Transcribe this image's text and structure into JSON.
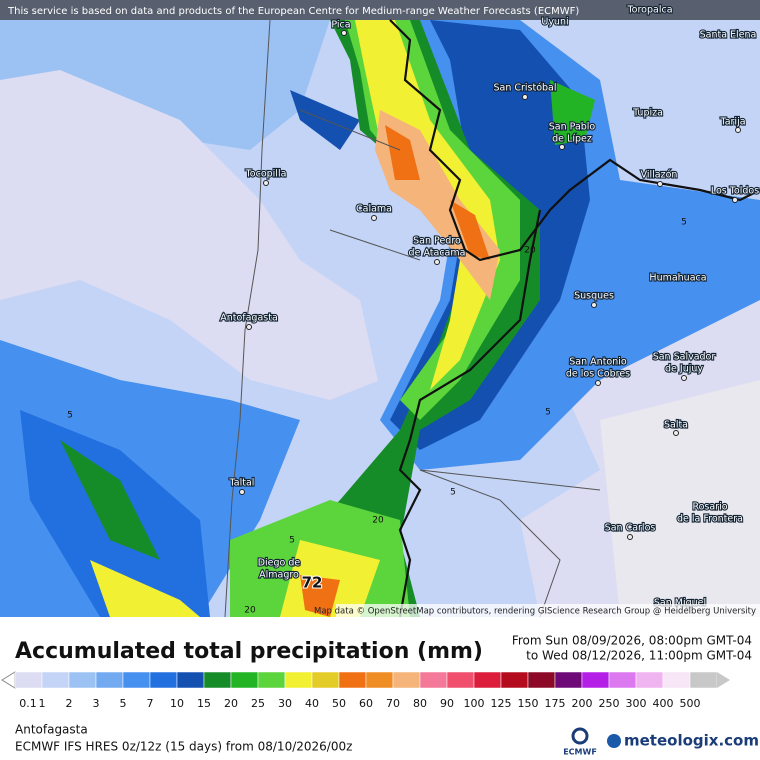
{
  "header": {
    "notice": "This service is based on data and products of the European Centre for Medium-range Weather Forecasts (ECMWF)"
  },
  "map": {
    "cities": [
      {
        "lines": [
          "Toropalca"
        ]
      },
      {
        "lines": [
          "Pica"
        ]
      },
      {
        "lines": [
          "Uyuni"
        ]
      },
      {
        "lines": [
          "Santa Elena"
        ]
      },
      {
        "lines": [
          "San Cristóbal"
        ]
      },
      {
        "lines": [
          "San Pablo",
          "de Lípez"
        ]
      },
      {
        "lines": [
          "Tupiza"
        ]
      },
      {
        "lines": [
          "Tarija"
        ]
      },
      {
        "lines": [
          "Tocopilla"
        ]
      },
      {
        "lines": [
          "Villazón"
        ]
      },
      {
        "lines": [
          "Los Toldos"
        ]
      },
      {
        "lines": [
          "Calama"
        ]
      },
      {
        "lines": [
          "San Pedro",
          "de Atacama"
        ]
      },
      {
        "lines": [
          "Humahuaca"
        ]
      },
      {
        "lines": [
          "Antofagasta"
        ]
      },
      {
        "lines": [
          "Susques"
        ]
      },
      {
        "lines": [
          "San Antonio",
          "de los Cobres"
        ]
      },
      {
        "lines": [
          "San Salvador",
          "de Jujuy"
        ]
      },
      {
        "lines": [
          "Salta"
        ]
      },
      {
        "lines": [
          "Taltal"
        ]
      },
      {
        "lines": [
          "Rosario",
          "de la Frontera"
        ]
      },
      {
        "lines": [
          "San Carlos"
        ]
      },
      {
        "lines": [
          "Diego de",
          "Almagro"
        ]
      },
      {
        "lines": [
          "San Miguel"
        ]
      }
    ],
    "contour_labels": [
      "5",
      "5",
      "5",
      "5",
      "5",
      "20",
      "20",
      "20"
    ],
    "max_label": "72",
    "attribution": "Map data © OpenStreetMap contributors, rendering GIScience Research Group @ Heidelberg University"
  },
  "legend": {
    "title": "Accumulated total precipitation (mm)",
    "period_from": "From Sun 08/09/2026, 08:00pm GMT-04",
    "period_to": "to Wed 08/12/2026, 11:00pm GMT-04",
    "levels": [
      {
        "value": 0.1,
        "color": "#dcdcf2"
      },
      {
        "value": 1,
        "color": "#c4d4f6"
      },
      {
        "value": 2,
        "color": "#9cc2f4"
      },
      {
        "value": 3,
        "color": "#72aaf2"
      },
      {
        "value": 5,
        "color": "#4690f0"
      },
      {
        "value": 7,
        "color": "#2270e0"
      },
      {
        "value": 10,
        "color": "#1450b0"
      },
      {
        "value": 15,
        "color": "#168c28"
      },
      {
        "value": 20,
        "color": "#22b424"
      },
      {
        "value": 25,
        "color": "#5cd43c"
      },
      {
        "value": 30,
        "color": "#f2f032"
      },
      {
        "value": 40,
        "color": "#e4cc28"
      },
      {
        "value": 50,
        "color": "#f07014"
      },
      {
        "value": 60,
        "color": "#f08c24"
      },
      {
        "value": 70,
        "color": "#f4b47a"
      },
      {
        "value": 80,
        "color": "#f47898"
      },
      {
        "value": 90,
        "color": "#f0506e"
      },
      {
        "value": 100,
        "color": "#dc1e3c"
      },
      {
        "value": 125,
        "color": "#b40a1e"
      },
      {
        "value": 150,
        "color": "#8c0a28"
      },
      {
        "value": 175,
        "color": "#6e0a78"
      },
      {
        "value": 200,
        "color": "#b41ee6"
      },
      {
        "value": 250,
        "color": "#dc78f0"
      },
      {
        "value": 300,
        "color": "#f0b4f0"
      },
      {
        "value": 400,
        "color": "#f6e6f6"
      },
      {
        "value": 500,
        "color": "#c8c8c8"
      }
    ]
  },
  "footer": {
    "location": "Antofagasta",
    "model": "ECMWF IFS HRES 0z/12z (15 days) from 08/10/2026/00z",
    "ecmwf_logo": "ECMWF",
    "brand": "meteologix.com"
  }
}
